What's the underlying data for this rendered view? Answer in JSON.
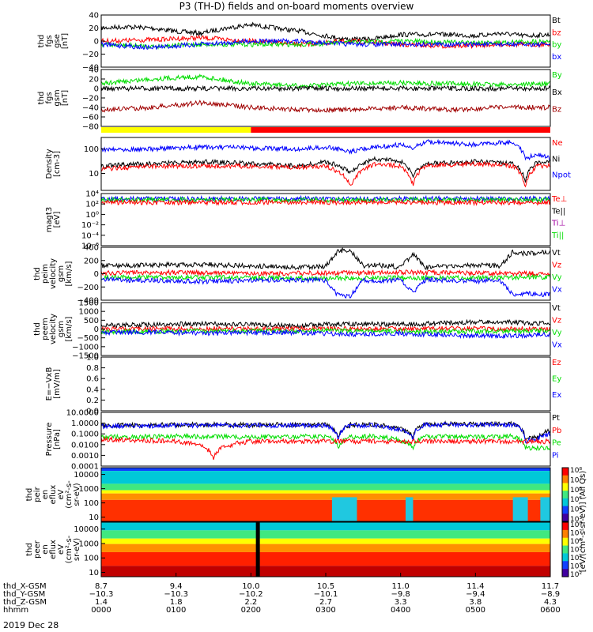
{
  "title": "P3 (TH-D) fields and on-board moments overview",
  "date": "2019 Dec 28",
  "colors": {
    "black": "#000000",
    "red": "#ff0000",
    "green": "#00dd00",
    "blue": "#0000ff",
    "darkred": "#a00000",
    "yellow": "#ffff00",
    "lightgreen": "#66ee66"
  },
  "chart_data": [
    {
      "id": "fgs-gse",
      "type": "line",
      "ylabel": [
        "thd",
        "fgs",
        "gse",
        "[nT]"
      ],
      "ylim": [
        -40,
        40
      ],
      "yticks": [
        "40",
        "20",
        "0",
        "−20",
        "−40"
      ],
      "yticks_values": [
        40,
        20,
        0,
        -20,
        -40
      ],
      "legend": [
        "Bt",
        "bz",
        "by",
        "bx"
      ],
      "legend_colors": [
        "#000000",
        "#ff0000",
        "#00dd00",
        "#0000ff"
      ],
      "series": [
        {
          "name": "Bt",
          "color": "#000000",
          "x": [
            0,
            20,
            40,
            60,
            80,
            100,
            120,
            140,
            160,
            180,
            200,
            220,
            240,
            260,
            280,
            300,
            320,
            340,
            360
          ],
          "y": [
            20,
            22,
            20,
            15,
            12,
            20,
            25,
            20,
            15,
            8,
            2,
            4,
            10,
            10,
            10,
            8,
            12,
            8,
            10
          ]
        },
        {
          "name": "bz",
          "color": "#ff0000",
          "x": [
            0,
            40,
            80,
            120,
            160,
            200,
            240,
            280,
            320,
            360
          ],
          "y": [
            0,
            2,
            5,
            0,
            -5,
            0,
            -5,
            -8,
            -5,
            -5
          ]
        },
        {
          "name": "by",
          "color": "#00dd00",
          "x": [
            0,
            40,
            80,
            120,
            160,
            200,
            240,
            280,
            320,
            360
          ],
          "y": [
            -5,
            -8,
            -5,
            -5,
            -5,
            -2,
            0,
            -2,
            -2,
            0
          ]
        },
        {
          "name": "bx",
          "color": "#0000ff",
          "x": [
            0,
            40,
            80,
            120,
            160,
            200,
            240,
            280,
            320,
            360
          ],
          "y": [
            -5,
            -10,
            -5,
            0,
            0,
            -5,
            -5,
            -5,
            -5,
            -5
          ]
        }
      ]
    },
    {
      "id": "fgs-gsm",
      "type": "line",
      "ylabel": [
        "thd",
        "fgs",
        "gsm",
        "[nT]"
      ],
      "ylim": [
        -80,
        40
      ],
      "yticks": [
        "40",
        "20",
        "0",
        "−20",
        "−40",
        "−60",
        "−80"
      ],
      "yticks_values": [
        40,
        20,
        0,
        -20,
        -40,
        -60,
        -80
      ],
      "legend": [
        "By",
        "Bx",
        "Bz"
      ],
      "legend_colors": [
        "#00dd00",
        "#000000",
        "#a00000"
      ],
      "series": [
        {
          "name": "By",
          "color": "#00dd00",
          "x": [
            0,
            40,
            80,
            120,
            160,
            200,
            240,
            280,
            320,
            360
          ],
          "y": [
            10,
            20,
            25,
            10,
            5,
            10,
            12,
            10,
            8,
            10
          ]
        },
        {
          "name": "Bx",
          "color": "#000000",
          "x": [
            0,
            360
          ],
          "y": [
            0,
            0
          ]
        },
        {
          "name": "Bz",
          "color": "#a00000",
          "x": [
            0,
            40,
            80,
            120,
            160,
            200,
            240,
            280,
            320,
            360
          ],
          "y": [
            -45,
            -40,
            -30,
            -40,
            -45,
            -45,
            -40,
            -45,
            -40,
            -40
          ]
        }
      ]
    },
    {
      "id": "density",
      "type": "line",
      "ylabel": [
        "Density",
        "[cm-3]"
      ],
      "yscale": "log",
      "ylim": [
        2,
        300
      ],
      "yticks": [
        "100",
        "10"
      ],
      "yticks_values": [
        100,
        10
      ],
      "legend": [
        "Ne",
        "Ni",
        "Npot"
      ],
      "legend_colors": [
        "#ff0000",
        "#000000",
        "#0000ff"
      ],
      "series": [
        {
          "name": "Npot",
          "color": "#0000ff",
          "x": [
            0,
            40,
            80,
            120,
            160,
            180,
            200,
            220,
            240,
            250,
            260,
            300,
            330,
            340,
            350,
            360
          ],
          "y": [
            100,
            100,
            120,
            110,
            100,
            120,
            80,
            120,
            150,
            100,
            200,
            150,
            200,
            40,
            60,
            40
          ]
        },
        {
          "name": "Ni",
          "color": "#000000",
          "x": [
            0,
            40,
            80,
            120,
            160,
            180,
            200,
            220,
            240,
            250,
            260,
            300,
            330,
            340,
            350,
            360
          ],
          "y": [
            20,
            25,
            30,
            25,
            20,
            30,
            10,
            40,
            30,
            8,
            25,
            30,
            25,
            5,
            30,
            30
          ]
        },
        {
          "name": "Ne",
          "color": "#ff0000",
          "x": [
            0,
            40,
            80,
            120,
            160,
            180,
            200,
            220,
            240,
            250,
            260,
            300,
            330,
            340,
            350,
            360
          ],
          "y": [
            15,
            20,
            20,
            20,
            18,
            20,
            3,
            25,
            20,
            3,
            20,
            25,
            20,
            3,
            20,
            20
          ]
        }
      ]
    },
    {
      "id": "magt3",
      "type": "line",
      "ylabel": [
        "magt3",
        "[eV]"
      ],
      "yscale": "log",
      "ylim": [
        1e-06,
        10000
      ],
      "yticks": [
        "10⁴",
        "10²",
        "10⁰",
        "10⁻²",
        "10⁻⁴",
        "10⁻⁶"
      ],
      "yticks_values": [
        10000,
        100,
        1,
        0.01,
        0.0001,
        1e-06
      ],
      "legend": [
        "Te⊥",
        "Te||",
        "Ti⊥",
        "Ti||"
      ],
      "legend_colors": [
        "#ff0000",
        "#000000",
        "#a000a0",
        "#00dd00"
      ],
      "series": [
        {
          "name": "Ti",
          "color": "#0000ff",
          "x": [
            0,
            360
          ],
          "y": [
            1000,
            1000
          ]
        },
        {
          "name": "Ti||",
          "color": "#00dd00",
          "x": [
            0,
            360
          ],
          "y": [
            600,
            600
          ]
        },
        {
          "name": "Te",
          "color": "#ff0000",
          "x": [
            0,
            360
          ],
          "y": [
            200,
            200
          ]
        }
      ]
    },
    {
      "id": "peim-velocity",
      "type": "line",
      "ylabel": [
        "thd",
        "peim",
        "velocity",
        "gsm",
        "[km/s]"
      ],
      "ylim": [
        -400,
        400
      ],
      "yticks": [
        "400",
        "200",
        "0",
        "−200",
        "−400"
      ],
      "yticks_values": [
        400,
        200,
        0,
        -200,
        -400
      ],
      "legend": [
        "Vt",
        "Vz",
        "Vy",
        "Vx"
      ],
      "legend_colors": [
        "#000000",
        "#ff0000",
        "#00dd00",
        "#0000ff"
      ],
      "series": [
        {
          "name": "Vt",
          "color": "#000000",
          "x": [
            0,
            40,
            80,
            120,
            160,
            180,
            190,
            200,
            210,
            220,
            240,
            250,
            260,
            300,
            320,
            330,
            340,
            350,
            360
          ],
          "y": [
            120,
            130,
            140,
            120,
            100,
            110,
            350,
            350,
            120,
            130,
            100,
            300,
            100,
            130,
            120,
            330,
            300,
            320,
            330
          ]
        },
        {
          "name": "Vz",
          "color": "#ff0000",
          "x": [
            0,
            60,
            120,
            180,
            240,
            300,
            360
          ],
          "y": [
            10,
            20,
            0,
            10,
            20,
            10,
            0
          ]
        },
        {
          "name": "Vy",
          "color": "#00dd00",
          "x": [
            0,
            60,
            120,
            180,
            240,
            300,
            360
          ],
          "y": [
            -60,
            -50,
            -60,
            -70,
            -60,
            -60,
            -50
          ]
        },
        {
          "name": "Vx",
          "color": "#0000ff",
          "x": [
            0,
            40,
            80,
            120,
            160,
            180,
            190,
            200,
            210,
            220,
            240,
            250,
            260,
            300,
            320,
            330,
            340,
            350,
            360
          ],
          "y": [
            -90,
            -100,
            -120,
            -100,
            -90,
            -100,
            -330,
            -330,
            -100,
            -110,
            -90,
            -290,
            -90,
            -110,
            -100,
            -320,
            -290,
            -310,
            -320
          ]
        }
      ]
    },
    {
      "id": "peem-velocity",
      "type": "line",
      "ylabel": [
        "thd",
        "peem",
        "velocity",
        "gsm",
        "[km/s]"
      ],
      "ylim": [
        -1500,
        1500
      ],
      "yticks": [
        "1500",
        "1000",
        "500",
        "0",
        "−500",
        "−1000",
        "−1500"
      ],
      "yticks_values": [
        1500,
        1000,
        500,
        0,
        -500,
        -1000,
        -1500
      ],
      "legend": [
        "Vt",
        "Vz",
        "Vy",
        "Vx"
      ],
      "legend_colors": [
        "#000000",
        "#ff0000",
        "#00dd00",
        "#0000ff"
      ],
      "series": [
        {
          "name": "Vt",
          "color": "#000000",
          "x": [
            0,
            40,
            80,
            120,
            160,
            200,
            240,
            280,
            320,
            360
          ],
          "y": [
            200,
            250,
            300,
            250,
            200,
            300,
            250,
            350,
            400,
            300
          ]
        },
        {
          "name": "Vz",
          "color": "#ff0000",
          "x": [
            0,
            90,
            180,
            270,
            360
          ],
          "y": [
            0,
            20,
            10,
            30,
            0
          ]
        },
        {
          "name": "Vy",
          "color": "#00dd00",
          "x": [
            0,
            90,
            180,
            270,
            360
          ],
          "y": [
            -150,
            -120,
            -100,
            -150,
            -100
          ]
        },
        {
          "name": "Vx",
          "color": "#0000ff",
          "x": [
            0,
            40,
            80,
            120,
            160,
            200,
            240,
            280,
            320,
            360
          ],
          "y": [
            -200,
            -180,
            -250,
            -200,
            -200,
            -300,
            -250,
            -350,
            -400,
            -300
          ]
        }
      ]
    },
    {
      "id": "efield",
      "type": "line",
      "ylabel": [
        "E=−VxB",
        "[mV/m]"
      ],
      "ylim": [
        0,
        1
      ],
      "yticks": [
        "1.0",
        "0.8",
        "0.6",
        "0.4",
        "0.2",
        "0.0"
      ],
      "yticks_values": [
        1.0,
        0.8,
        0.6,
        0.4,
        0.2,
        0.0
      ],
      "legend": [
        "Ez",
        "Ey",
        "Ex"
      ],
      "legend_colors": [
        "#ff0000",
        "#00dd00",
        "#0000ff"
      ],
      "series": []
    },
    {
      "id": "pressure",
      "type": "line",
      "ylabel": [
        "Pressure",
        "[nPa]"
      ],
      "yscale": "log",
      "ylim": [
        0.0001,
        10
      ],
      "yticks": [
        "10.0000",
        "1.0000",
        "0.1000",
        "0.0100",
        "0.0010",
        "0.0001"
      ],
      "yticks_values": [
        10,
        1,
        0.1,
        0.01,
        0.001,
        0.0001
      ],
      "legend": [
        "Pt",
        "Pb",
        "Pe",
        "Pi"
      ],
      "legend_colors": [
        "#000000",
        "#ff0000",
        "#00dd00",
        "#0000ff"
      ],
      "series": [
        {
          "name": "Pt",
          "color": "#000000",
          "x": [
            0,
            60,
            120,
            180,
            190,
            200,
            220,
            250,
            260,
            300,
            330,
            340,
            350,
            360
          ],
          "y": [
            0.6,
            0.7,
            0.7,
            0.7,
            0.03,
            0.7,
            0.7,
            0.05,
            0.8,
            0.8,
            0.8,
            0.03,
            0.05,
            0.2
          ]
        },
        {
          "name": "Pi",
          "color": "#0000ff",
          "x": [
            0,
            60,
            120,
            180,
            190,
            200,
            220,
            250,
            260,
            300,
            330,
            340,
            350,
            360
          ],
          "y": [
            0.5,
            0.6,
            0.6,
            0.6,
            0.02,
            0.6,
            0.6,
            0.04,
            0.7,
            0.7,
            0.7,
            0.02,
            0.04,
            0.1
          ]
        },
        {
          "name": "Pe",
          "color": "#00dd00",
          "x": [
            0,
            60,
            120,
            180,
            190,
            200,
            220,
            250,
            260,
            300,
            330,
            340,
            350,
            360
          ],
          "y": [
            0.05,
            0.06,
            0.05,
            0.06,
            0.005,
            0.05,
            0.06,
            0.005,
            0.06,
            0.05,
            0.06,
            0.005,
            0.005,
            0.005
          ]
        },
        {
          "name": "Pb",
          "color": "#ff0000",
          "x": [
            0,
            60,
            90,
            120,
            180,
            200,
            240,
            300,
            360
          ],
          "y": [
            0.03,
            0.02,
            0.0005,
            0.02,
            0.02,
            0.02,
            0.02,
            0.02,
            0.02
          ]
        }
      ]
    },
    {
      "id": "peir-spectrogram",
      "type": "heatmap",
      "ylabel": [
        "thd",
        "peir",
        "en",
        "eflux",
        "eV",
        "(cm²-s-",
        "sr-eV)"
      ],
      "yscale": "log",
      "ylim": [
        5,
        30000
      ],
      "yticks": [
        "10000",
        "1000",
        "100",
        "10"
      ],
      "yticks_values": [
        10000,
        1000,
        100,
        10
      ],
      "colorbar_ticks": [
        "10⁸",
        "10⁷",
        "10⁶",
        "10⁵",
        "10⁴",
        "10³"
      ]
    },
    {
      "id": "peer-spectrogram",
      "type": "heatmap",
      "ylabel": [
        "thd",
        "peer",
        "en",
        "eflux",
        "eV",
        "(cm²-s-",
        "sr-eV)"
      ],
      "yscale": "log",
      "ylim": [
        5,
        30000
      ],
      "yticks": [
        "10000",
        "1000",
        "100",
        "10"
      ],
      "yticks_values": [
        10000,
        1000,
        100,
        10
      ],
      "colorbar_ticks": [
        "10⁸",
        "10⁷",
        "10⁶",
        "10⁵",
        "10⁴",
        "10³",
        "10²"
      ]
    }
  ],
  "colorbar_label": "[eV/(cm²-s-sr-eV)] (All Qs)",
  "x_axis": {
    "rows": [
      {
        "label": "thd_X-GSM",
        "values": [
          "8.7",
          "9.4",
          "10.0",
          "10.5",
          "11.0",
          "11.4",
          "11.7"
        ]
      },
      {
        "label": "thd_Y-GSM",
        "values": [
          "−10.3",
          "−10.3",
          "−10.2",
          "−10.1",
          "−9.8",
          "−9.4",
          "−8.9"
        ]
      },
      {
        "label": "thd_Z-GSM",
        "values": [
          "1.4",
          "1.8",
          "2.2",
          "2.7",
          "3.3",
          "3.8",
          "4.3"
        ]
      },
      {
        "label": "hhmm",
        "values": [
          "0000",
          "0100",
          "0200",
          "0300",
          "0400",
          "0500",
          "0600"
        ]
      }
    ]
  }
}
